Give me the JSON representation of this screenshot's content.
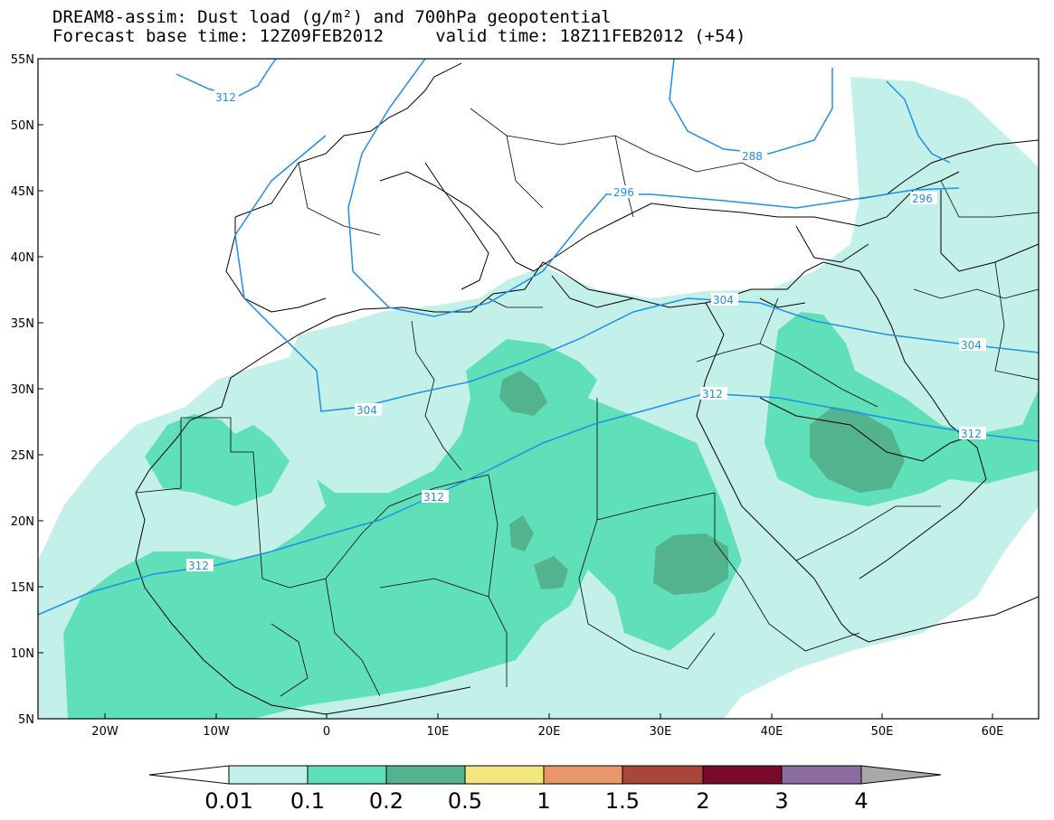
{
  "header": {
    "title": "DREAM8-assim: Dust load (g/m²) and 700hPa geopotential",
    "subtitle": "Forecast base time: 12Z09FEB2012     valid time: 18Z11FEB2012 (+54)"
  },
  "map": {
    "lon_range": [
      -25,
      65
    ],
    "lat_range": [
      5,
      55
    ],
    "lat_labels": [
      "55N",
      "50N",
      "45N",
      "40N",
      "35N",
      "30N",
      "25N",
      "20N",
      "15N",
      "10N",
      "5N"
    ],
    "lon_labels": [
      "20W",
      "10W",
      "0",
      "10E",
      "20E",
      "30E",
      "40E",
      "50E",
      "60E"
    ],
    "contour_color": "#1e90e8",
    "contour_labels": [
      "312",
      "288",
      "296",
      "296",
      "304",
      "304",
      "304",
      "312",
      "312",
      "312",
      "312"
    ]
  },
  "colorbar": {
    "levels": [
      "0.01",
      "0.1",
      "0.2",
      "0.5",
      "1",
      "1.5",
      "2",
      "3",
      "4"
    ],
    "colors": [
      "#ffffff",
      "#c4f0ea",
      "#5fe0b8",
      "#52b38e",
      "#f2e77e",
      "#e9966a",
      "#a9463a",
      "#7a0a2a",
      "#8c6ca0",
      "#a8a8a8"
    ]
  }
}
